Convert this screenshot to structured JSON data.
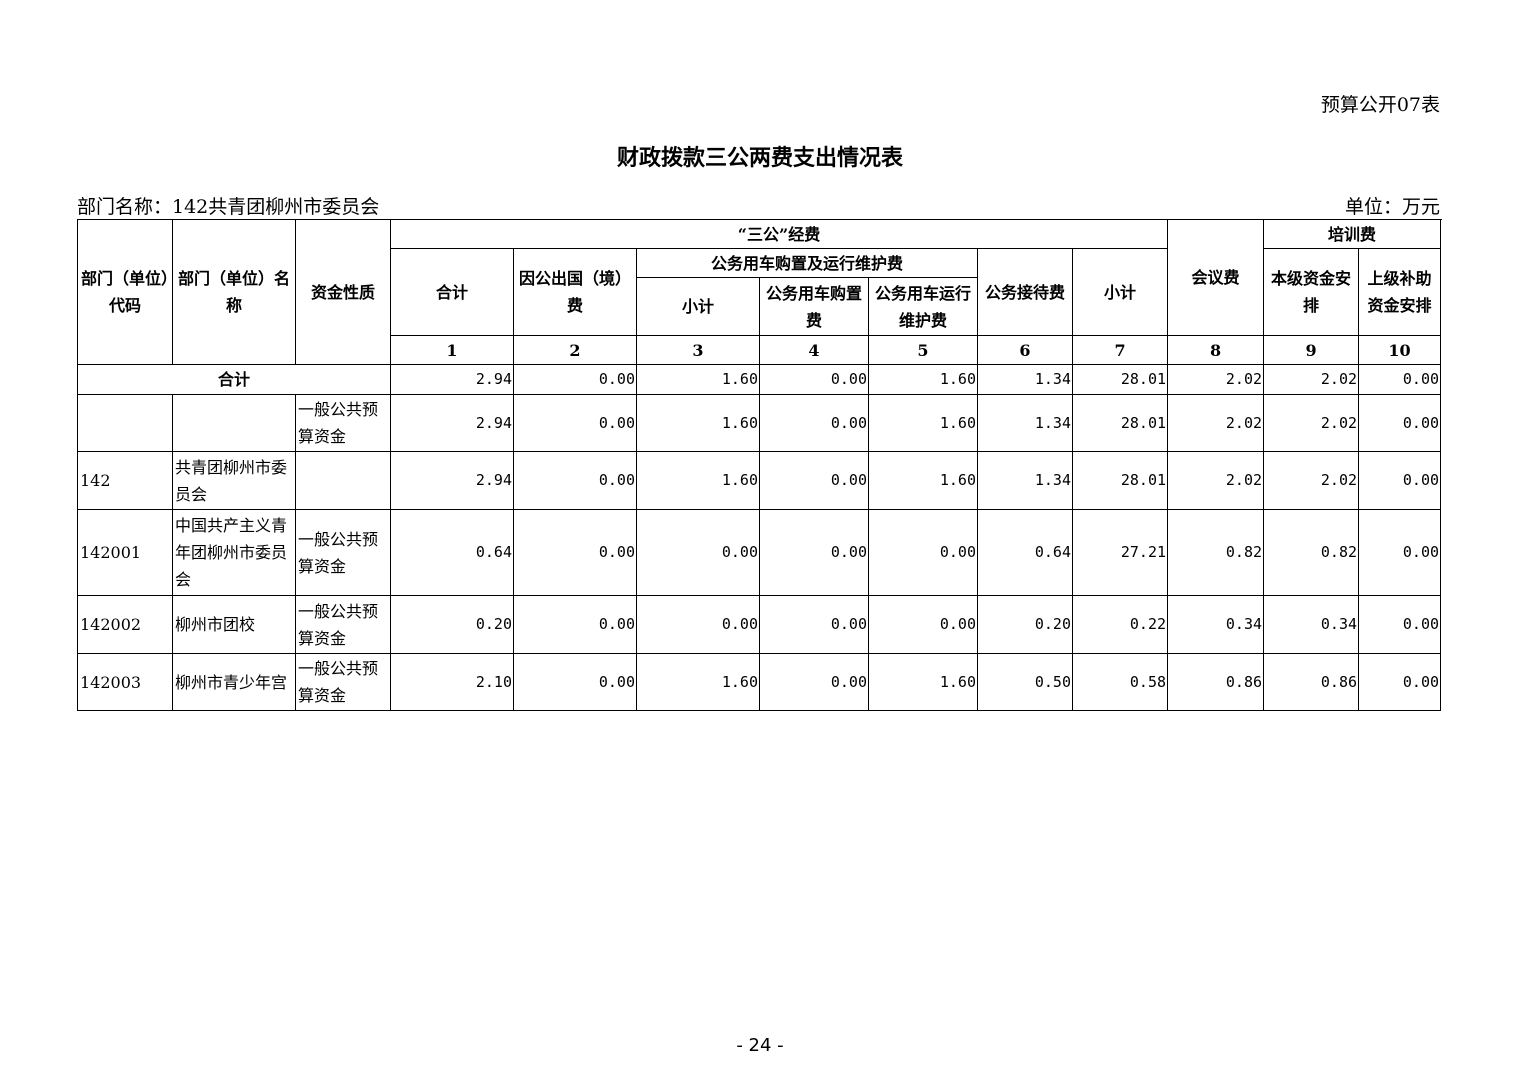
{
  "form_no": "预算公开07表",
  "title": "财政拨款三公两费支出情况表",
  "dept_label": "部门名称：142共青团柳州市委员会",
  "unit_label": "单位：万元",
  "headers": {
    "code": "部门（单位）代码",
    "name": "部门（单位）名称",
    "fund_type": "资金性质",
    "sangong": "“三公”经费",
    "total": "合计",
    "abroad": "因公出国（境）费",
    "car_group": "公务用车购置及运行维护费",
    "car_sub": "小计",
    "car_buy": "公务用车购置费",
    "car_run": "公务用车运行维护费",
    "reception": "公务接待费",
    "meeting": "会议费",
    "training": "培训费",
    "train_sub": "小计",
    "train_local": "本级资金安排",
    "train_upper": "上级补助资金安排",
    "nums": [
      "1",
      "2",
      "3",
      "4",
      "5",
      "6",
      "7",
      "8",
      "9",
      "10"
    ]
  },
  "total_row": {
    "label": "合计",
    "values": [
      "2.94",
      "0.00",
      "1.60",
      "0.00",
      "1.60",
      "1.34",
      "28.01",
      "2.02",
      "2.02",
      "0.00"
    ]
  },
  "rows": [
    {
      "code": "",
      "name": "",
      "fund": "一般公共预算资金",
      "values": [
        "2.94",
        "0.00",
        "1.60",
        "0.00",
        "1.60",
        "1.34",
        "28.01",
        "2.02",
        "2.02",
        "0.00"
      ]
    },
    {
      "code": "142",
      "name": " 共青团柳州市委员会",
      "fund": "",
      "values": [
        "2.94",
        "0.00",
        "1.60",
        "0.00",
        "1.60",
        "1.34",
        "28.01",
        "2.02",
        "2.02",
        "0.00"
      ]
    },
    {
      "code": "142001",
      "name": " 中国共产主义青年团柳州市委员会",
      "fund": " 一般公共预算资金",
      "values": [
        "0.64",
        "0.00",
        "0.00",
        "0.00",
        "0.00",
        "0.64",
        "27.21",
        "0.82",
        "0.82",
        "0.00"
      ]
    },
    {
      "code": "142002",
      "name": " 柳州市团校",
      "fund": " 一般公共预算资金",
      "values": [
        "0.20",
        "0.00",
        "0.00",
        "0.00",
        "0.00",
        "0.20",
        "0.22",
        "0.34",
        "0.34",
        "0.00"
      ]
    },
    {
      "code": "142003",
      "name": " 柳州市青少年宫",
      "fund": " 一般公共预算资金",
      "values": [
        "2.10",
        "0.00",
        "1.60",
        "0.00",
        "1.60",
        "0.50",
        "0.58",
        "0.86",
        "0.86",
        "0.00"
      ]
    }
  ],
  "page_number": "- 24 -"
}
